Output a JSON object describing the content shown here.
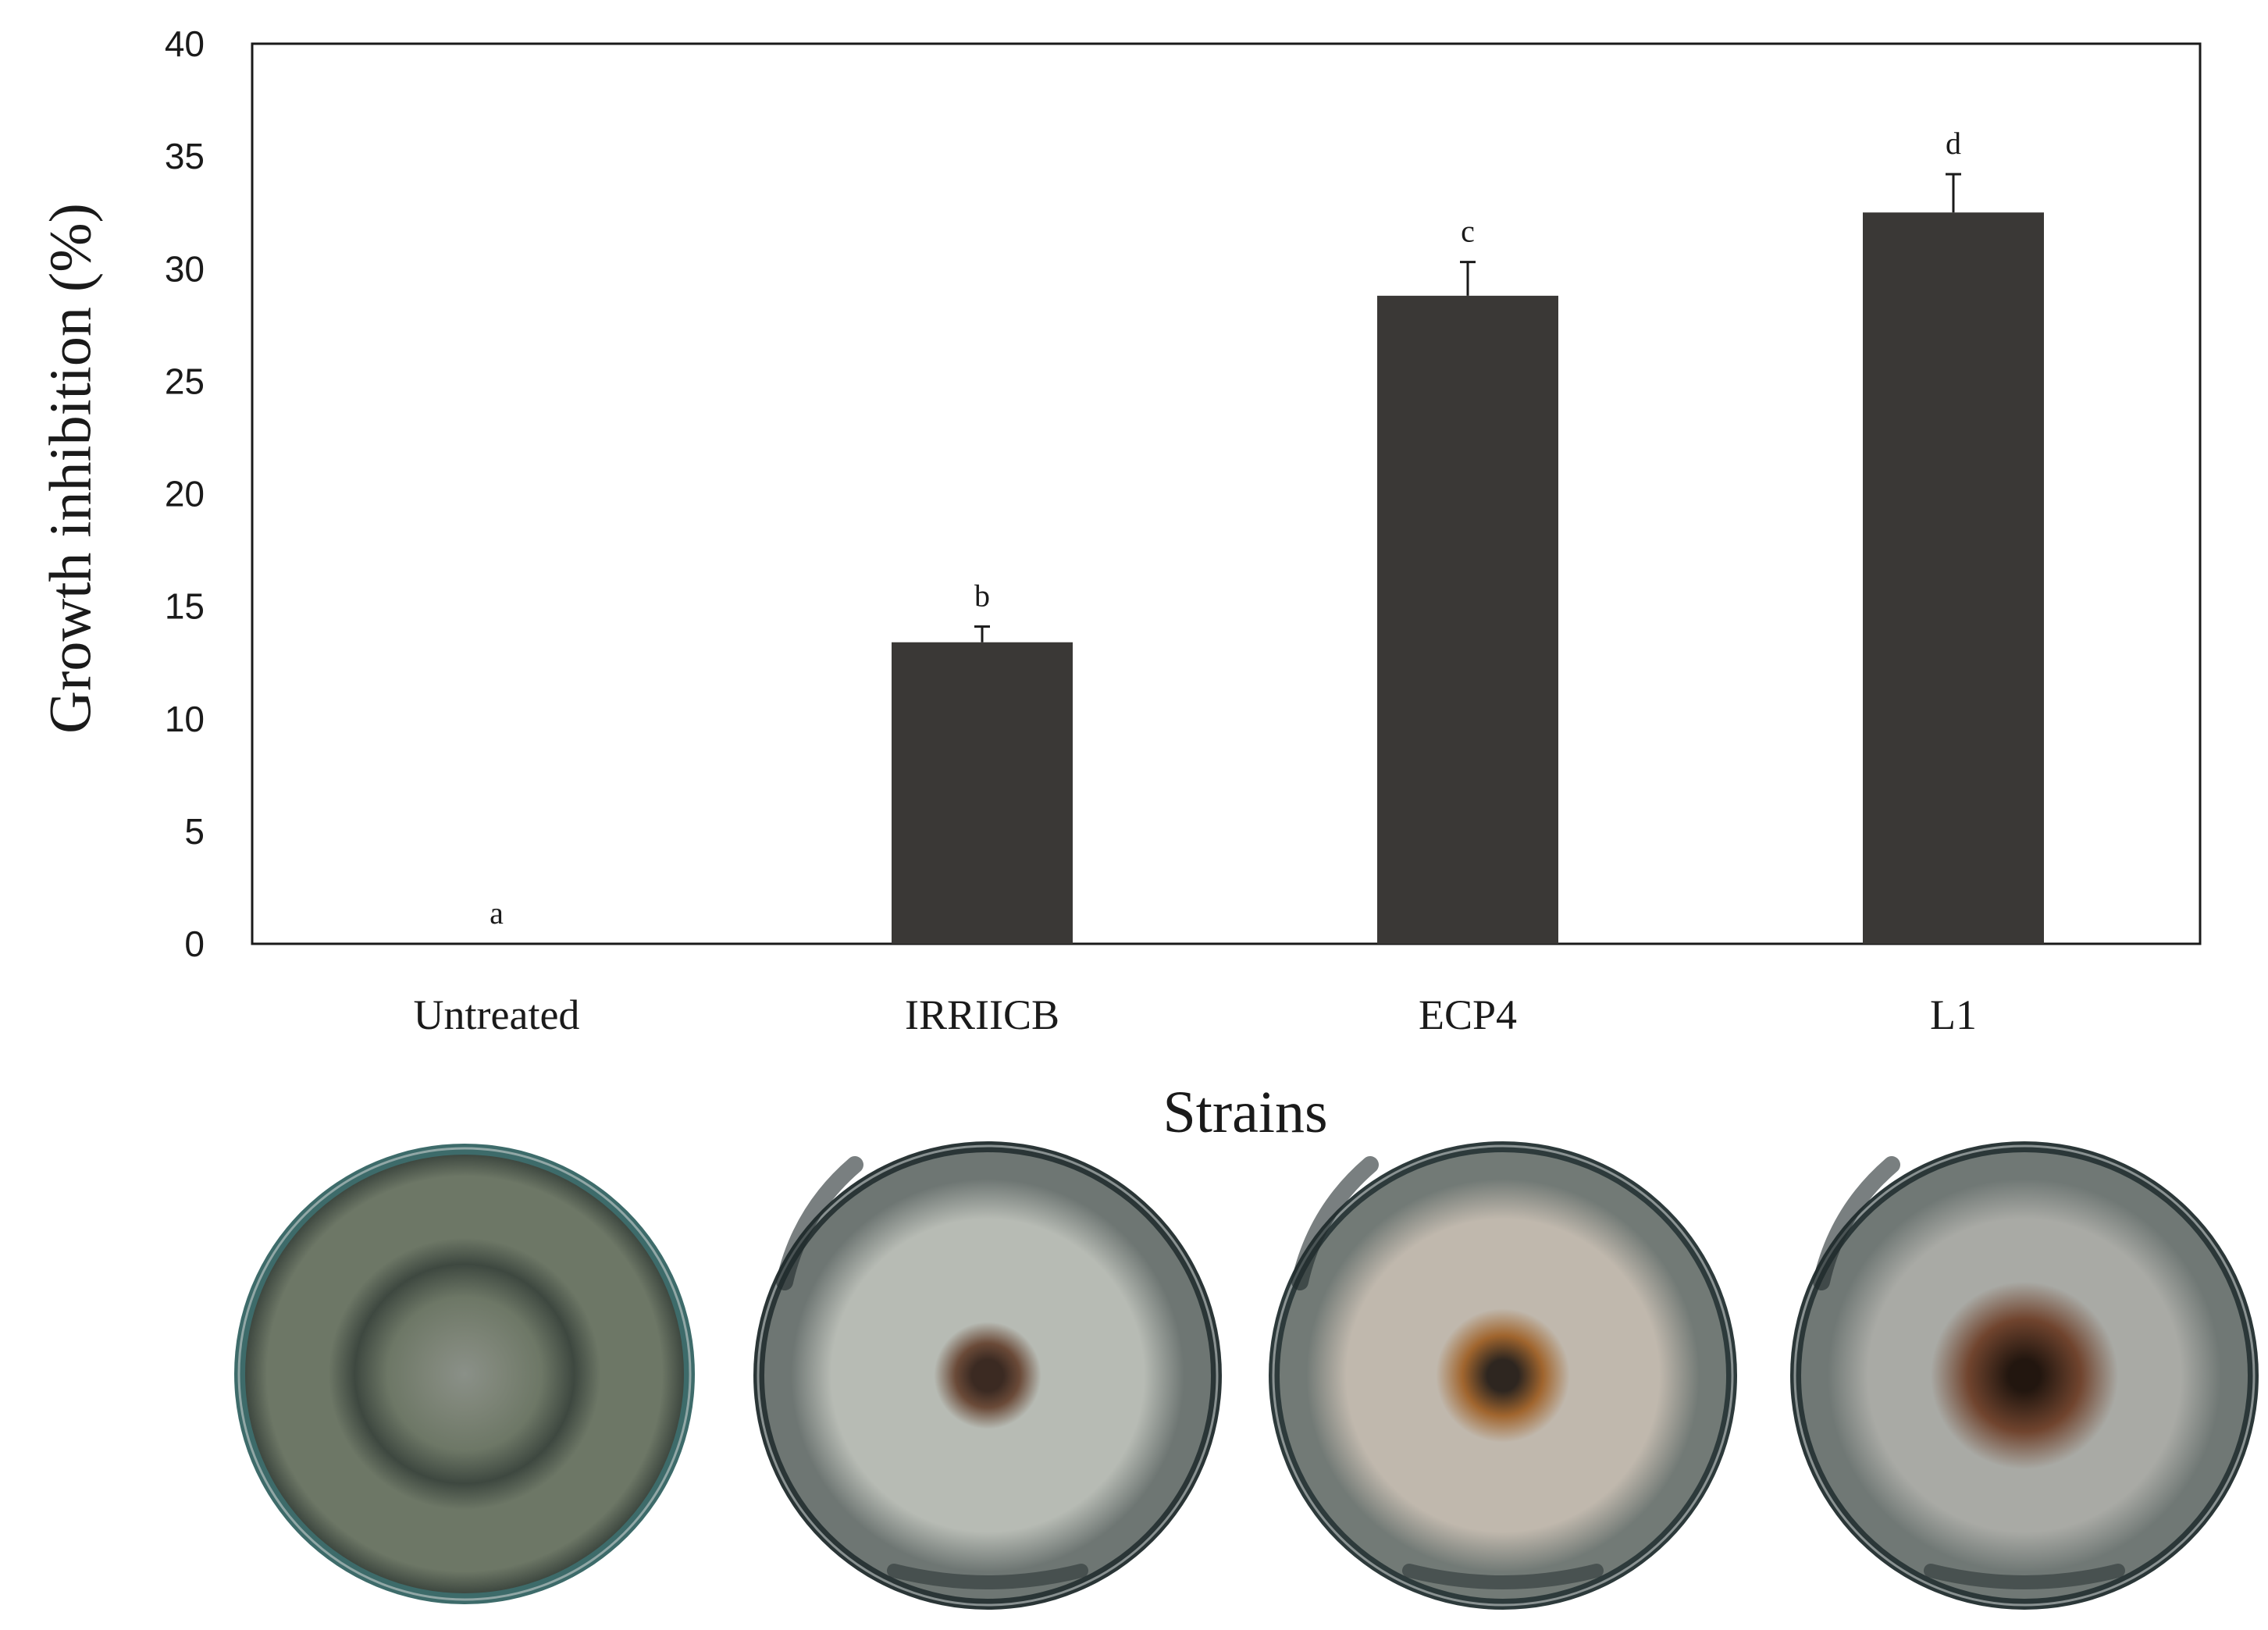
{
  "chart_data": {
    "type": "bar",
    "categories": [
      "Untreated",
      "IRRIICB",
      "ECP4",
      "L1"
    ],
    "values": [
      0,
      13.4,
      28.8,
      32.5
    ],
    "error": [
      0,
      0.7,
      1.5,
      1.7
    ],
    "significance": [
      "a",
      "b",
      "c",
      "d"
    ],
    "xlabel": "Strains",
    "ylabel": "Growth inhibition (%)",
    "ylim": [
      0,
      40
    ],
    "yticks": [
      0,
      5,
      10,
      15,
      20,
      25,
      30,
      35,
      40
    ],
    "grid": false,
    "bar_color": "#3a3836"
  },
  "photos": [
    {
      "name": "Untreated",
      "rim": "#3d6b6a",
      "base": "#6d7766",
      "ring": "#3e4840",
      "center": "#8a9088",
      "inner": "#7f8679"
    },
    {
      "name": "IRRIICB",
      "rim": "#2a3536",
      "base": "#6e7673",
      "halo": "#b7bbb4",
      "center": "#3b2a22",
      "brown": "#6a4a38"
    },
    {
      "name": "ECP4",
      "rim": "#2d3a3b",
      "base": "#727a76",
      "halo": "#c0b8ad",
      "center": "#2e2620",
      "brown": "#a0652e"
    },
    {
      "name": "L1",
      "rim": "#2b3738",
      "base": "#707875",
      "halo": "#a9aaa5",
      "center": "#22160f",
      "brown": "#70442e"
    }
  ]
}
